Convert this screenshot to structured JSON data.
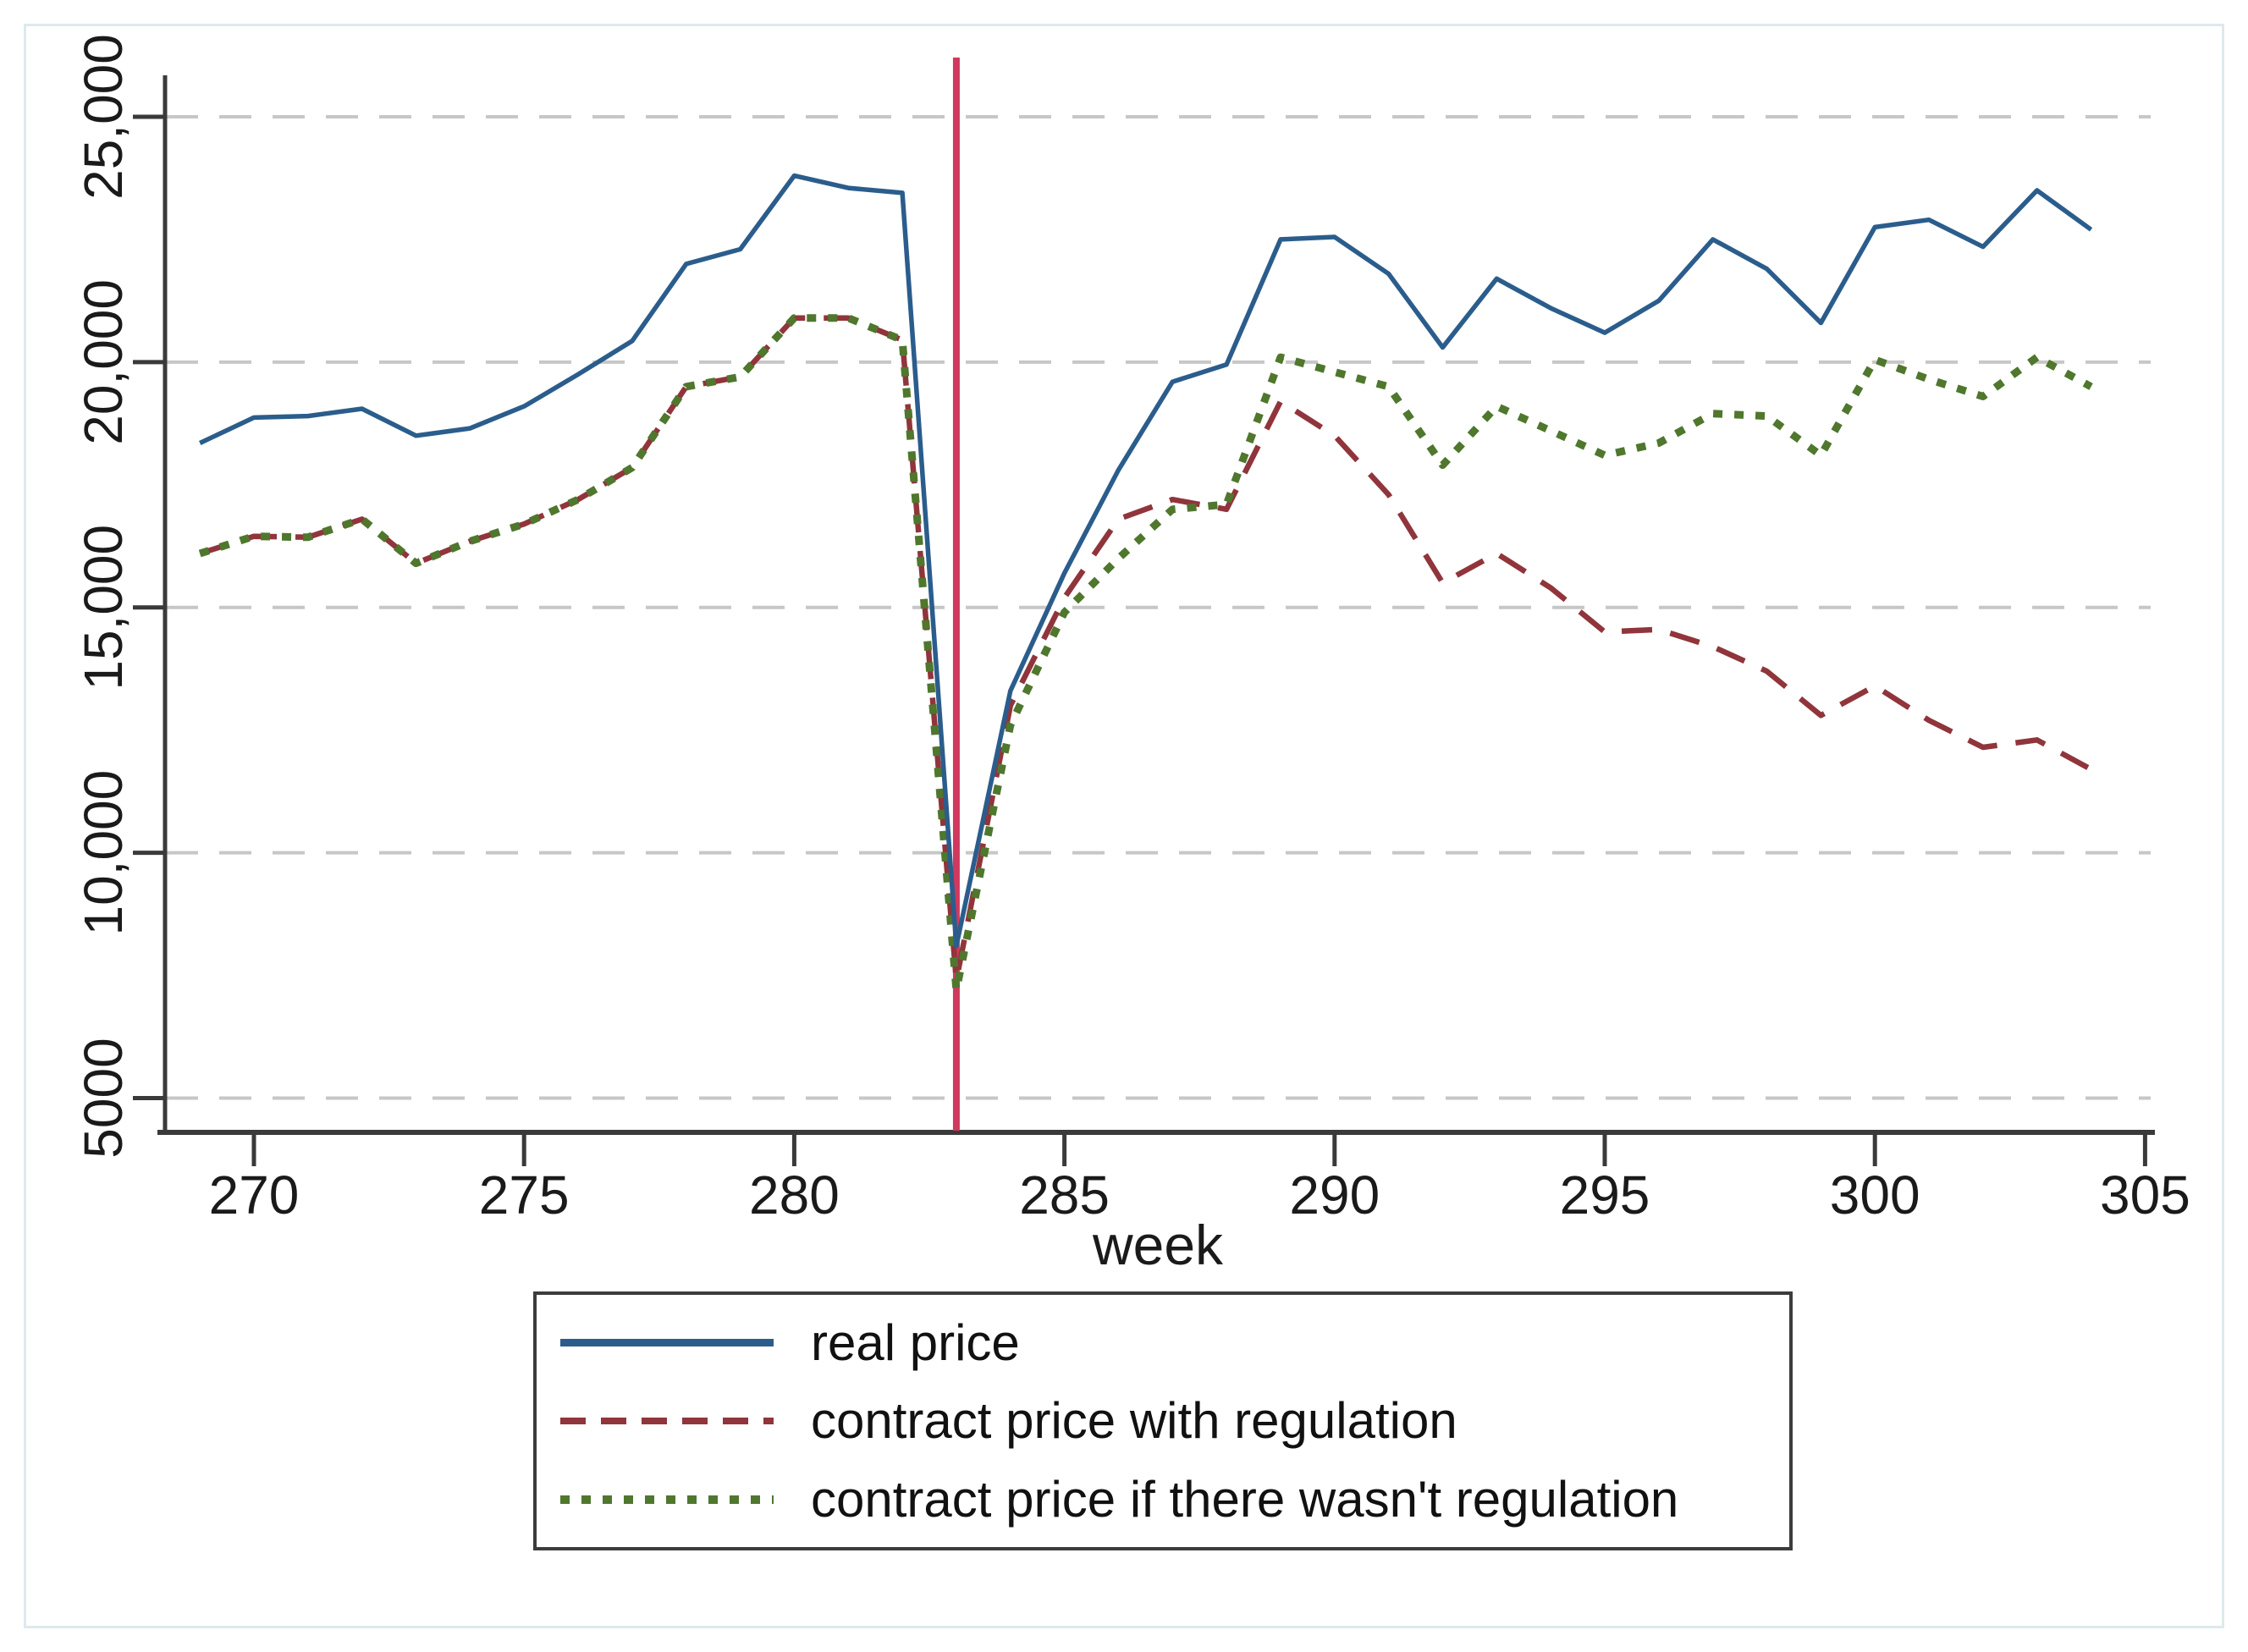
{
  "figure": {
    "background": "#FFFFFF",
    "border_color": "#DFE9ED",
    "axis_color": "#3A3A3A",
    "gridline_color": "#C7C7C7",
    "text_color": "#1A1A1A"
  },
  "chart_data": {
    "type": "line",
    "title": "",
    "xlabel": "week",
    "ylabel": "",
    "grid": "horizontal dashed gridlines at each y tick",
    "legend_position": "bottom-center boxed",
    "xlim": [
      268.3,
      305.3
    ],
    "ylim": [
      4300,
      26200
    ],
    "x_ticks": [
      {
        "value": 270,
        "label": "270"
      },
      {
        "value": 275,
        "label": "275"
      },
      {
        "value": 280,
        "label": "280"
      },
      {
        "value": 285,
        "label": "285"
      },
      {
        "value": 290,
        "label": "290"
      },
      {
        "value": 295,
        "label": "295"
      },
      {
        "value": 300,
        "label": "300"
      },
      {
        "value": 305,
        "label": "305"
      }
    ],
    "y_ticks": [
      {
        "value": 25000,
        "label": "25,000"
      },
      {
        "value": 20000,
        "label": "20,000"
      },
      {
        "value": 15000,
        "label": "15,000"
      },
      {
        "value": 10000,
        "label": "10,000"
      },
      {
        "value": 5000,
        "label": "5000"
      }
    ],
    "vertical_reference_line": {
      "x": 283,
      "color": "#D0385E"
    },
    "x": [
      269,
      270,
      271,
      272,
      273,
      274,
      275,
      276,
      277,
      278,
      279,
      280,
      281,
      282,
      283,
      284,
      285,
      286,
      287,
      288,
      289,
      290,
      291,
      292,
      293,
      294,
      295,
      296,
      297,
      298,
      299,
      300,
      301,
      302,
      303,
      304
    ],
    "series": [
      {
        "name": "real price",
        "color": "#2B5D8C",
        "style": "solid",
        "values": [
          18350,
          18870,
          18900,
          19050,
          18500,
          18650,
          19100,
          19750,
          20430,
          22000,
          22300,
          23800,
          23550,
          23450,
          8100,
          13300,
          15700,
          17800,
          19600,
          19950,
          22500,
          22550,
          21800,
          20300,
          21700,
          21100,
          20600,
          21250,
          22500,
          21900,
          20800,
          22750,
          22900,
          22350,
          23500,
          22700
        ]
      },
      {
        "name": "contract price with regulation",
        "color": "#90353B",
        "style": "dashed",
        "values": [
          16100,
          16450,
          16430,
          16800,
          15900,
          16350,
          16700,
          17200,
          17850,
          19500,
          19700,
          20900,
          20900,
          20450,
          7400,
          13000,
          15200,
          16800,
          17200,
          17000,
          19200,
          18500,
          17300,
          15500,
          16100,
          15400,
          14500,
          14550,
          14200,
          13700,
          12800,
          13400,
          12700,
          12150,
          12300,
          11700
        ]
      },
      {
        "name": "contract price if there wasn't regulation",
        "color": "#4F772D",
        "style": "dotted",
        "values": [
          16100,
          16450,
          16430,
          16800,
          15900,
          16350,
          16700,
          17200,
          17850,
          19500,
          19700,
          20900,
          20900,
          20450,
          7200,
          12600,
          14900,
          16000,
          17000,
          17100,
          20100,
          19800,
          19500,
          17900,
          19100,
          18600,
          18100,
          18350,
          18950,
          18900,
          18100,
          20050,
          19650,
          19300,
          20100,
          19500
        ]
      }
    ]
  }
}
